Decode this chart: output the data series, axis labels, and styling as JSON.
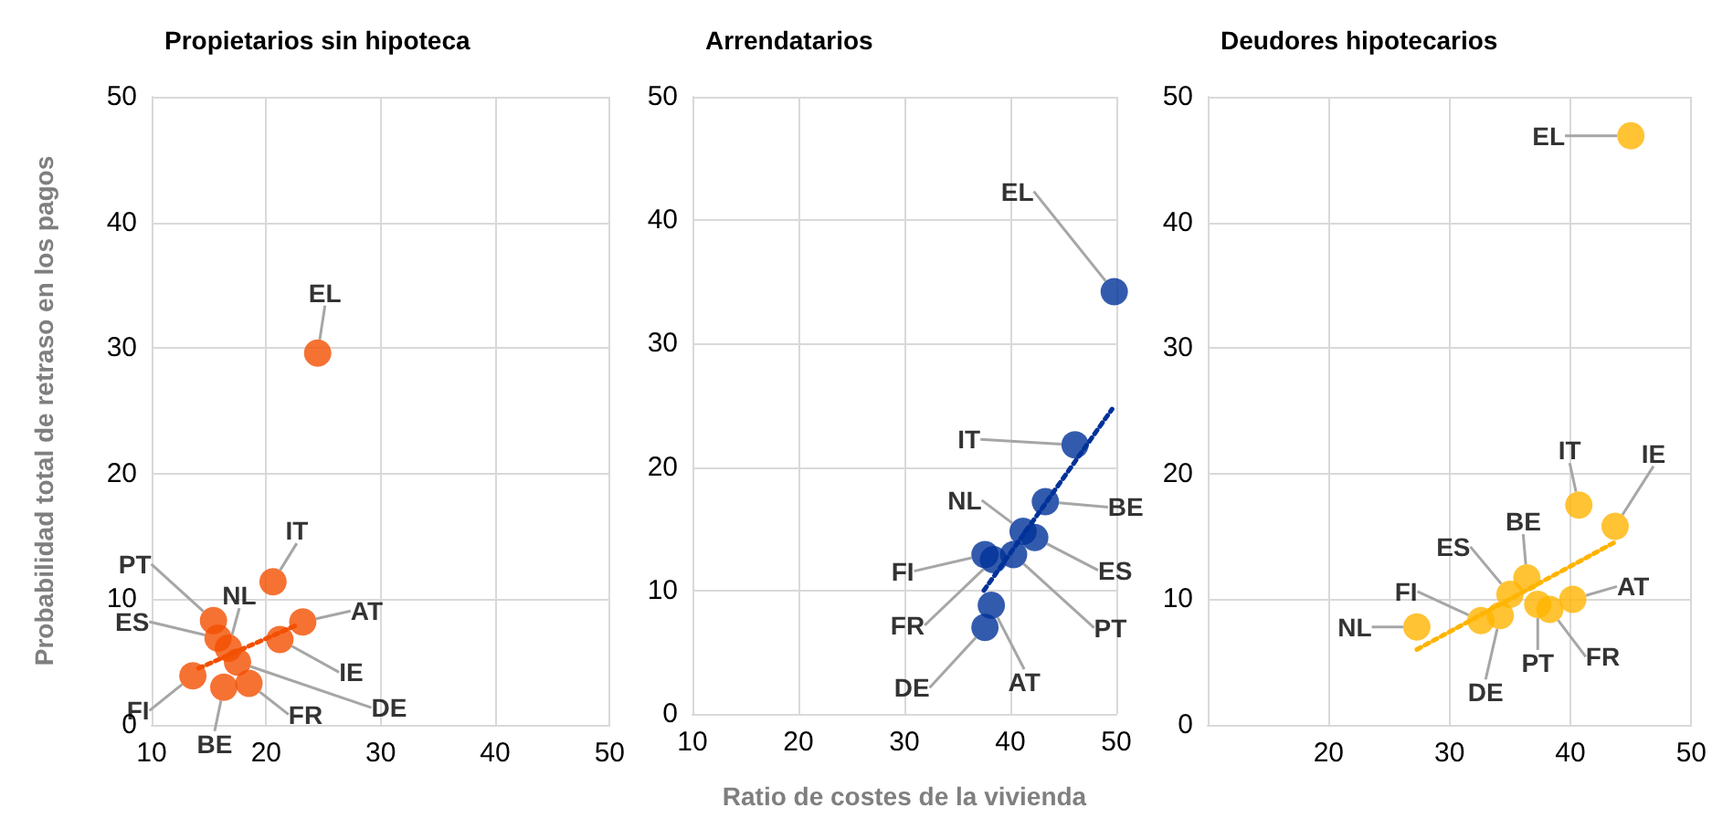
{
  "chart_data": [
    {
      "type": "scatter",
      "title": "Propietarios sin hipoteca",
      "ylabel": "Probabilidad total de retraso en los pagos",
      "xlim": [
        10,
        50
      ],
      "xticks": [
        10,
        20,
        30,
        40,
        50
      ],
      "ylim": [
        0,
        50
      ],
      "yticks": [
        0,
        10,
        20,
        30,
        40,
        50
      ],
      "grid": true,
      "series": [
        {
          "marker": "circle",
          "color": "#f24f00",
          "x": [
            24.5,
            20.6,
            23.2,
            21.2,
            17.5,
            18.5,
            16.3,
            13.6,
            15.8,
            15.4,
            16.7
          ],
          "values": [
            29.6,
            11.4,
            8.2,
            6.8,
            5.0,
            3.3,
            3.0,
            3.9,
            6.9,
            8.3,
            6.1
          ],
          "value_labels": [
            "EL",
            "IT",
            "AT",
            "IE",
            "DE",
            "FR",
            "BE",
            "FI",
            "ES",
            "PT",
            "NL"
          ]
        },
        {
          "type": "line",
          "marker": "none",
          "color": "#f24f00",
          "line_style": "dotted",
          "x": [
            14.1,
            22.8
          ],
          "values": [
            4.5,
            8.0
          ]
        }
      ]
    },
    {
      "type": "scatter",
      "title": "Arrendatarios",
      "xlabel": "Ratio de costes de la vivienda",
      "xlim": [
        10,
        50
      ],
      "xticks": [
        10,
        20,
        30,
        40,
        50
      ],
      "ylim": [
        0,
        50
      ],
      "yticks": [
        0,
        10,
        20,
        30,
        40,
        50
      ],
      "grid": true,
      "series": [
        {
          "marker": "circle",
          "color": "#003299",
          "x": [
            49.8,
            46.1,
            43.3,
            41.2,
            42.3,
            40.3,
            37.6,
            38.4,
            38.2,
            37.6
          ],
          "values": [
            34.2,
            21.8,
            17.2,
            14.8,
            14.3,
            12.9,
            12.9,
            12.5,
            8.8,
            7.0
          ],
          "value_labels": [
            "EL",
            "IT",
            "BE",
            "NL",
            "ES",
            "PT",
            "FI",
            "FR",
            "AT",
            "DE"
          ]
        },
        {
          "type": "line",
          "marker": "none",
          "color": "#003299",
          "line_style": "dotted",
          "x": [
            37.5,
            49.6
          ],
          "values": [
            10.0,
            24.7
          ]
        }
      ]
    },
    {
      "type": "scatter",
      "title": "Deudores hipotecarios",
      "xlim": [
        10,
        50
      ],
      "xticks": [
        {
          "value": 10,
          "label": null
        },
        20,
        30,
        40,
        50
      ],
      "ylim": [
        0,
        50
      ],
      "yticks": [
        0,
        10,
        20,
        30,
        40,
        50
      ],
      "grid": true,
      "series": [
        {
          "marker": "circle",
          "color": "#ffb400",
          "x": [
            45.0,
            40.7,
            43.7,
            36.4,
            35.0,
            40.2,
            37.3,
            38.3,
            34.2,
            32.6,
            27.3
          ],
          "values": [
            46.9,
            17.5,
            15.8,
            11.7,
            10.4,
            10.0,
            9.6,
            9.2,
            8.7,
            8.3,
            7.8
          ],
          "value_labels": [
            "EL",
            "IT",
            "IE",
            "BE",
            "ES",
            "AT",
            "PT",
            "FR",
            "DE",
            "FI",
            "NL"
          ]
        },
        {
          "type": "line",
          "marker": "none",
          "color": "#ffb400",
          "line_style": "dotted",
          "x": [
            27.3,
            43.6
          ],
          "values": [
            6.0,
            14.5
          ]
        }
      ]
    }
  ]
}
